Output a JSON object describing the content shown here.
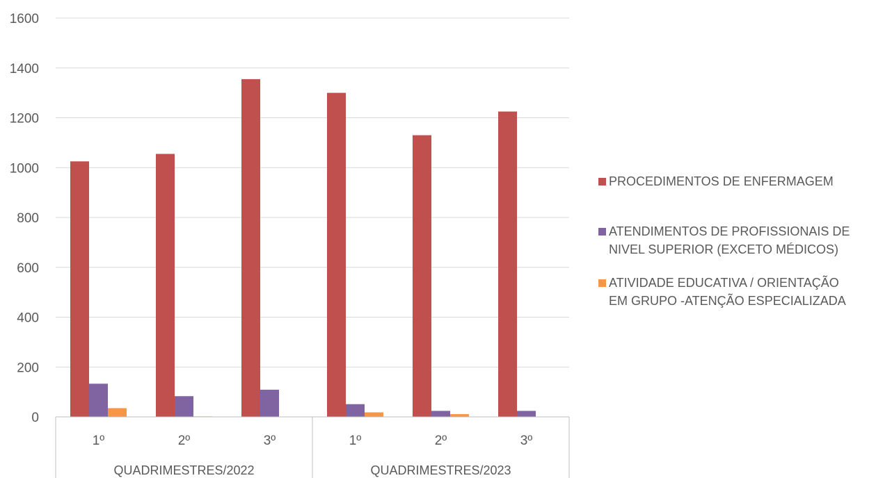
{
  "chart_data": {
    "type": "bar",
    "title": "",
    "xlabel": "",
    "ylabel": "",
    "ylim": [
      0,
      1600
    ],
    "yticks": [
      0,
      200,
      400,
      600,
      800,
      1000,
      1200,
      1400,
      1600
    ],
    "yticks_labels": [
      "0",
      "200",
      "400",
      "600",
      "800",
      "1000",
      "1200",
      "1400",
      "1600"
    ],
    "grid": true,
    "legend_position": "right",
    "categories": [
      "1º",
      "2º",
      "3º",
      "1º",
      "2º",
      "3º"
    ],
    "groups": [
      {
        "label": "QUADRIMESTRES/2022",
        "count": 3
      },
      {
        "label": "QUADRIMESTRES/2023",
        "count": 3
      }
    ],
    "series": [
      {
        "name": "PROCEDIMENTOS DE ENFERMAGEM",
        "legend_lines": [
          "PROCEDIMENTOS DE ENFERMAGEM"
        ],
        "color": "#c0504d",
        "values": [
          1025,
          1055,
          1355,
          1300,
          1130,
          1225
        ]
      },
      {
        "name": "ATENDIMENTOS DE PROFISSIONAIS DE NIVEL SUPERIOR (EXCETO MÉDICOS)",
        "legend_lines": [
          "ATENDIMENTOS DE PROFISSIONAIS DE",
          "NIVEL SUPERIOR (EXCETO MÉDICOS)"
        ],
        "color": "#8064a2",
        "values": [
          133,
          83,
          109,
          51,
          24,
          24
        ]
      },
      {
        "name": "ATIVIDADE EDUCATIVA / ORIENTAÇÃO EM GRUPO -ATENÇÃO ESPECIALIZADA",
        "legend_lines": [
          "ATIVIDADE EDUCATIVA / ORIENTAÇÃO",
          "EM GRUPO -ATENÇÃO ESPECIALIZADA"
        ],
        "color": "#f79646",
        "values": [
          35,
          2,
          0,
          18,
          11,
          0
        ]
      }
    ]
  }
}
